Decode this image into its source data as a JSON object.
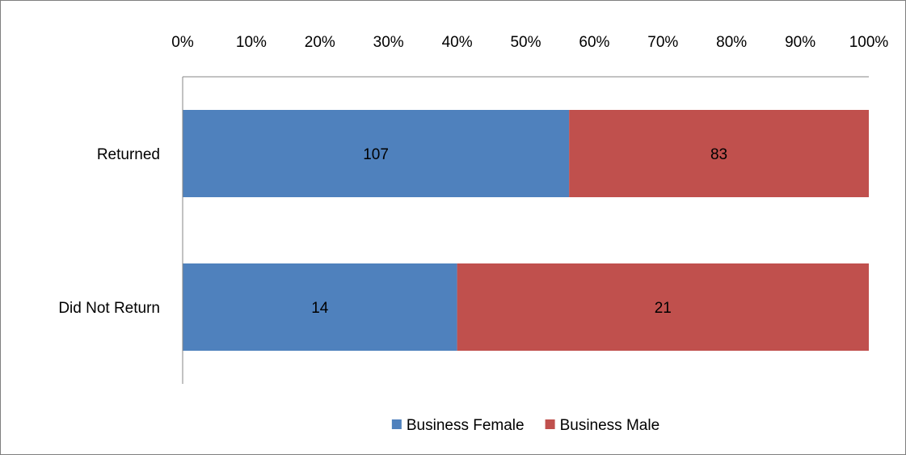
{
  "chart_data": {
    "type": "bar",
    "orientation": "horizontal",
    "stacking": "percent",
    "categories": [
      "Returned",
      "Did Not Return"
    ],
    "series": [
      {
        "name": "Business Female",
        "values": [
          107,
          14
        ],
        "color": "#4F81BD"
      },
      {
        "name": "Business Male",
        "values": [
          83,
          21
        ],
        "color": "#C0504D"
      }
    ],
    "x_ticks": [
      "0%",
      "10%",
      "20%",
      "30%",
      "40%",
      "50%",
      "60%",
      "70%",
      "80%",
      "90%",
      "100%"
    ],
    "xlim": [
      0,
      100
    ],
    "x_axis_position": "top",
    "grid": false,
    "legend_position": "bottom",
    "data_labels": true
  }
}
